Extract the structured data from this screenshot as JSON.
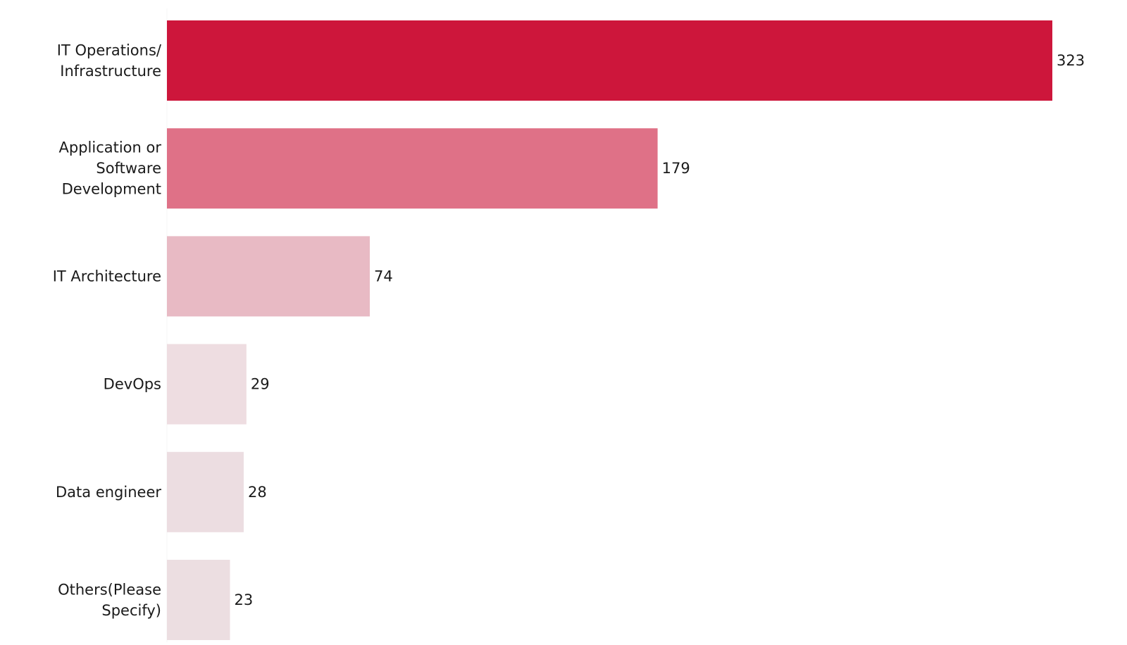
{
  "chart_data": {
    "type": "bar",
    "orientation": "horizontal",
    "categories": [
      [
        "IT Operations/",
        "Infrastructure"
      ],
      [
        "Application or",
        "Software",
        "Development"
      ],
      [
        "IT Architecture"
      ],
      [
        "DevOps"
      ],
      [
        "Data engineer"
      ],
      [
        "Others(Please",
        "Specify)"
      ]
    ],
    "values": [
      323,
      179,
      74,
      29,
      28,
      23
    ],
    "colors": [
      "#cd163b",
      "#df7187",
      "#e8bac4",
      "#eedde1",
      "#ecdde1",
      "#ecdee1"
    ],
    "xlim": [
      0,
      323
    ],
    "grid": false,
    "title": "",
    "xlabel": "",
    "ylabel": "",
    "data_labels": true
  }
}
